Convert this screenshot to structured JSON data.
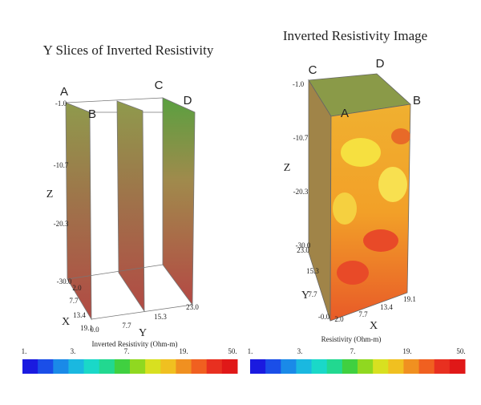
{
  "left": {
    "title": "Y Slices of Inverted Resistivity",
    "corners": [
      "A",
      "B",
      "C",
      "D"
    ],
    "z_label": "Z",
    "z_ticks": [
      "-1.0",
      "-10.7",
      "-20.3",
      "-30.0"
    ],
    "x_label": "X",
    "x_ticks": [
      "2.0",
      "7.7",
      "13.4",
      "19.1"
    ],
    "y_label": "Y",
    "y_ticks": [
      "0.0",
      "7.7",
      "15.3",
      "23.0"
    ],
    "colorbar_label": "Inverted Resistivity (Ohm-m)",
    "colorbar_ticks": [
      "1.",
      "3.",
      "7.",
      "19.",
      "50."
    ]
  },
  "right": {
    "title": "Inverted Resistivity Image",
    "corners": [
      "C",
      "D",
      "A",
      "B"
    ],
    "z_label": "Z",
    "z_ticks": [
      "-1.0",
      "-10.7",
      "-20.3",
      "-30.0"
    ],
    "x_label": "X",
    "x_ticks": [
      "2.0",
      "7.7",
      "13.4",
      "19.1"
    ],
    "y_label": "Y",
    "y_ticks": [
      "-0.0",
      "7.7",
      "15.3",
      "23.0"
    ],
    "colorbar_label": "Resistivity (Ohm-m)",
    "colorbar_ticks": [
      "1.",
      "3.",
      "7.",
      "19.",
      "50."
    ]
  },
  "colorbar_colors": [
    "#1a1ae0",
    "#1a4ee8",
    "#1a8ae8",
    "#1ab8e0",
    "#1ad8c8",
    "#22d890",
    "#40d040",
    "#90d820",
    "#d8e020",
    "#f0c020",
    "#f09020",
    "#f06020",
    "#e83020",
    "#e01818"
  ]
}
